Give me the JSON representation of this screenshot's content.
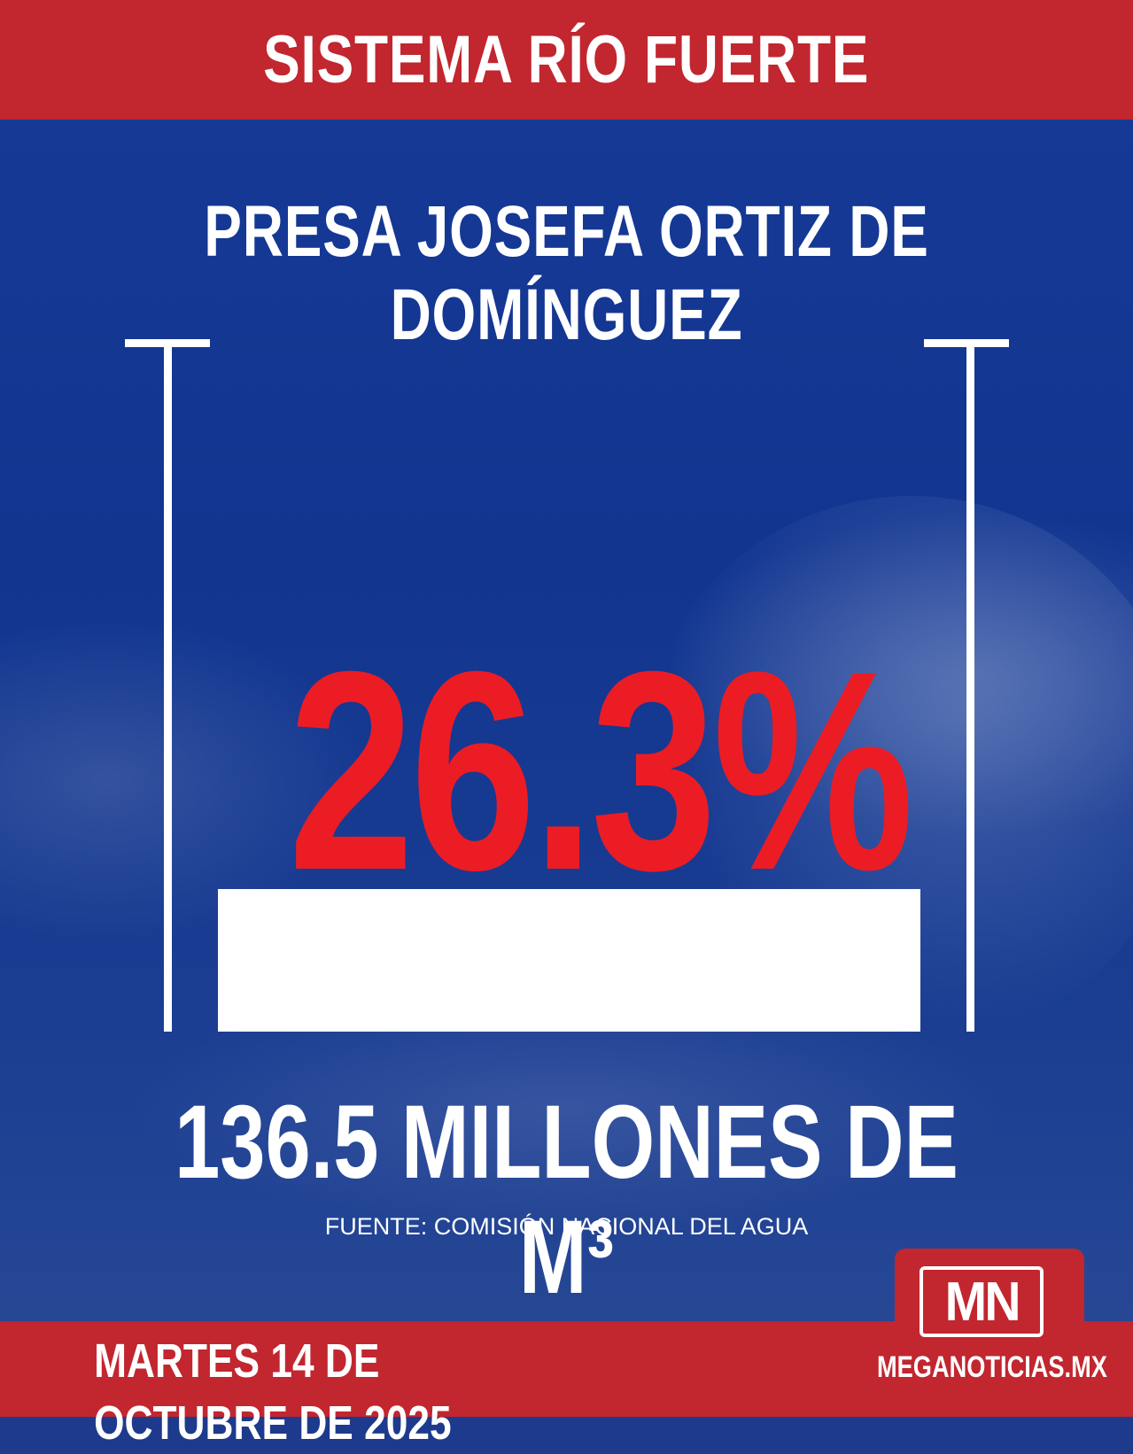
{
  "header": {
    "title": "SISTEMA RÍO FUERTE"
  },
  "dam": {
    "name": "PRESA JOSEFA ORTIZ DE DOMÍNGUEZ"
  },
  "gauge": {
    "percent_label": "26.3%",
    "fill_fraction": 0.263,
    "volume_label": "136.5 MILLONES DE M³"
  },
  "source": {
    "text": "FUENTE: COMISIÓN NACIONAL DEL AGUA"
  },
  "footer": {
    "date": "MARTES 14 DE OCTUBRE DE 2025",
    "logo_text": "MN",
    "site": "MEGANOTICIAS.MX"
  },
  "colors": {
    "banner_red": "#c2262f",
    "percent_red": "#ec1c24",
    "background_blue": "#163a96",
    "fill_white": "#ffffff"
  },
  "icons": {
    "logo": "mn-logo-icon"
  }
}
